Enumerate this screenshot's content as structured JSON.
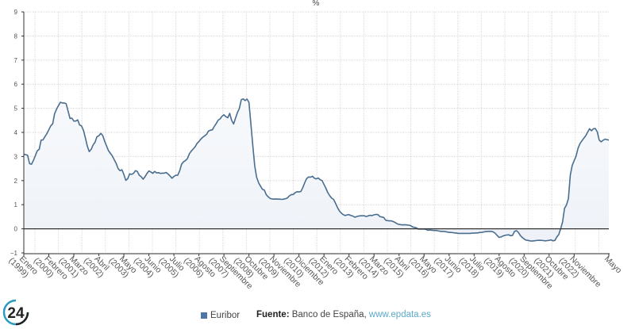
{
  "chart_data": {
    "type": "area",
    "title": "%",
    "xlabel": "",
    "ylabel": "",
    "ylim": [
      -1,
      9
    ],
    "yticks": [
      -1,
      0,
      1,
      2,
      3,
      4,
      5,
      6,
      7,
      8,
      9
    ],
    "grid": true,
    "legend_position": "bottom",
    "x_tick_labels": [
      [
        "Enero",
        "(1999)"
      ],
      [
        "Febrero",
        "(2000)"
      ],
      [
        "Marzo",
        "(2001)"
      ],
      [
        "Abril",
        "(2002)"
      ],
      [
        "Mayo",
        "(2003)"
      ],
      [
        "Junio",
        "(2004)"
      ],
      [
        "Julio",
        "(2005)"
      ],
      [
        "Agosto",
        "(2006)"
      ],
      [
        "Septiembre",
        "(2007)"
      ],
      [
        "Octubre",
        "(2008)"
      ],
      [
        "Noviembre",
        "(2009)"
      ],
      [
        "Diciembre",
        "(2010)"
      ],
      [
        "Enero",
        "(2012)"
      ],
      [
        "Febrero",
        "(2013)"
      ],
      [
        "Marzo",
        "(2014)"
      ],
      [
        "Abril",
        "(2015)"
      ],
      [
        "Mayo",
        "(2016)"
      ],
      [
        "Junio",
        "(2017)"
      ],
      [
        "Julio",
        "(2018)"
      ],
      [
        "Agosto",
        "(2019)"
      ],
      [
        "Septiembre",
        "(2020)"
      ],
      [
        "Octubre",
        "(2021)"
      ],
      [
        "Noviembre",
        "(2022)"
      ],
      [
        "Mayo",
        ""
      ]
    ],
    "series": [
      {
        "name": "Euribor",
        "color": "#4a6e8f",
        "fill": "#eef2f8",
        "monthly_values_by_year": {
          "1999": [
            3.09,
            3.08,
            3.05,
            2.7,
            2.68,
            2.84,
            3.03,
            3.24,
            3.3,
            3.68,
            3.69,
            3.83
          ],
          "2000": [
            3.95,
            4.11,
            4.27,
            4.36,
            4.78,
            4.96,
            5.11,
            5.25,
            5.22,
            5.22,
            5.19,
            4.88
          ],
          "2001": [
            4.58,
            4.59,
            4.47,
            4.47,
            4.52,
            4.31,
            4.27,
            4.08,
            3.77,
            3.43,
            3.2,
            3.3
          ],
          "2002": [
            3.48,
            3.59,
            3.82,
            3.86,
            3.96,
            3.87,
            3.64,
            3.44,
            3.24,
            3.13,
            3.02,
            2.87
          ],
          "2003": [
            2.71,
            2.5,
            2.41,
            2.45,
            2.25,
            2.01,
            2.08,
            2.28,
            2.26,
            2.3,
            2.41,
            2.38
          ],
          "2004": [
            2.22,
            2.16,
            2.06,
            2.16,
            2.3,
            2.4,
            2.36,
            2.3,
            2.38,
            2.32,
            2.33,
            2.3
          ],
          "2005": [
            2.31,
            2.31,
            2.34,
            2.27,
            2.19,
            2.1,
            2.17,
            2.22,
            2.22,
            2.41,
            2.68,
            2.78
          ],
          "2006": [
            2.83,
            2.91,
            3.11,
            3.22,
            3.31,
            3.4,
            3.54,
            3.62,
            3.72,
            3.8,
            3.86,
            3.92
          ],
          "2007": [
            4.06,
            4.09,
            4.11,
            4.25,
            4.37,
            4.51,
            4.56,
            4.67,
            4.73,
            4.65,
            4.61,
            4.79
          ],
          "2008": [
            4.5,
            4.35,
            4.59,
            4.82,
            4.99,
            5.36,
            5.39,
            5.32,
            5.38,
            5.25,
            4.35,
            3.45
          ],
          "2009": [
            2.62,
            2.14,
            1.91,
            1.77,
            1.64,
            1.61,
            1.41,
            1.33,
            1.26,
            1.24,
            1.23,
            1.24
          ],
          "2010": [
            1.23,
            1.23,
            1.22,
            1.23,
            1.25,
            1.28,
            1.37,
            1.42,
            1.42,
            1.5,
            1.54,
            1.53
          ],
          "2011": [
            1.55,
            1.71,
            1.92,
            2.09,
            2.15,
            2.14,
            2.18,
            2.1,
            2.07,
            2.11,
            2.04,
            2.0
          ],
          "2012": [
            1.84,
            1.68,
            1.5,
            1.37,
            1.27,
            1.22,
            1.06,
            0.88,
            0.74,
            0.65,
            0.59,
            0.55
          ],
          "2013": [
            0.58,
            0.59,
            0.55,
            0.53,
            0.48,
            0.51,
            0.53,
            0.54,
            0.54,
            0.54,
            0.51,
            0.54
          ],
          "2014": [
            0.56,
            0.55,
            0.58,
            0.6,
            0.59,
            0.51,
            0.49,
            0.47,
            0.36,
            0.34,
            0.33,
            0.33
          ],
          "2015": [
            0.3,
            0.26,
            0.21,
            0.18,
            0.17,
            0.16,
            0.17,
            0.16,
            0.15,
            0.13,
            0.08,
            0.06
          ],
          "2016": [
            0.04,
            -0.01,
            -0.01,
            -0.01,
            -0.01,
            -0.03,
            -0.06,
            -0.05,
            -0.06,
            -0.07,
            -0.07,
            -0.08
          ],
          "2017": [
            -0.1,
            -0.11,
            -0.11,
            -0.12,
            -0.13,
            -0.15,
            -0.15,
            -0.16,
            -0.17,
            -0.18,
            -0.19,
            -0.19
          ],
          "2018": [
            -0.19,
            -0.19,
            -0.19,
            -0.19,
            -0.19,
            -0.18,
            -0.18,
            -0.17,
            -0.17,
            -0.15,
            -0.15,
            -0.13
          ],
          "2019": [
            -0.12,
            -0.11,
            -0.11,
            -0.11,
            -0.13,
            -0.19,
            -0.28,
            -0.36,
            -0.34,
            -0.3,
            -0.27,
            -0.26
          ],
          "2020": [
            -0.25,
            -0.29,
            -0.27,
            -0.11,
            -0.08,
            -0.15,
            -0.28,
            -0.36,
            -0.42,
            -0.47,
            -0.48,
            -0.5
          ],
          "2021": [
            -0.51,
            -0.5,
            -0.49,
            -0.48,
            -0.48,
            -0.48,
            -0.49,
            -0.5,
            -0.49,
            -0.48,
            -0.46,
            -0.5
          ],
          "2022": [
            -0.48,
            -0.34,
            -0.24,
            0.01,
            0.29,
            0.85,
            0.99,
            1.25,
            2.23,
            2.63,
            2.83,
            3.02
          ],
          "2023": [
            3.34,
            3.53,
            3.65,
            3.76,
            3.86,
            4.01,
            4.15,
            4.07,
            4.15,
            4.16,
            4.02,
            3.68
          ],
          "2024": [
            3.61,
            3.67,
            3.72,
            3.7,
            3.68
          ]
        }
      }
    ]
  },
  "footer": {
    "logo_text": "24",
    "legend_label": "Euribor",
    "legend_color": "#4a77a8",
    "source_label": "Fuente:",
    "source_text": " Banco de España, ",
    "source_link": "www.epdata.es"
  }
}
